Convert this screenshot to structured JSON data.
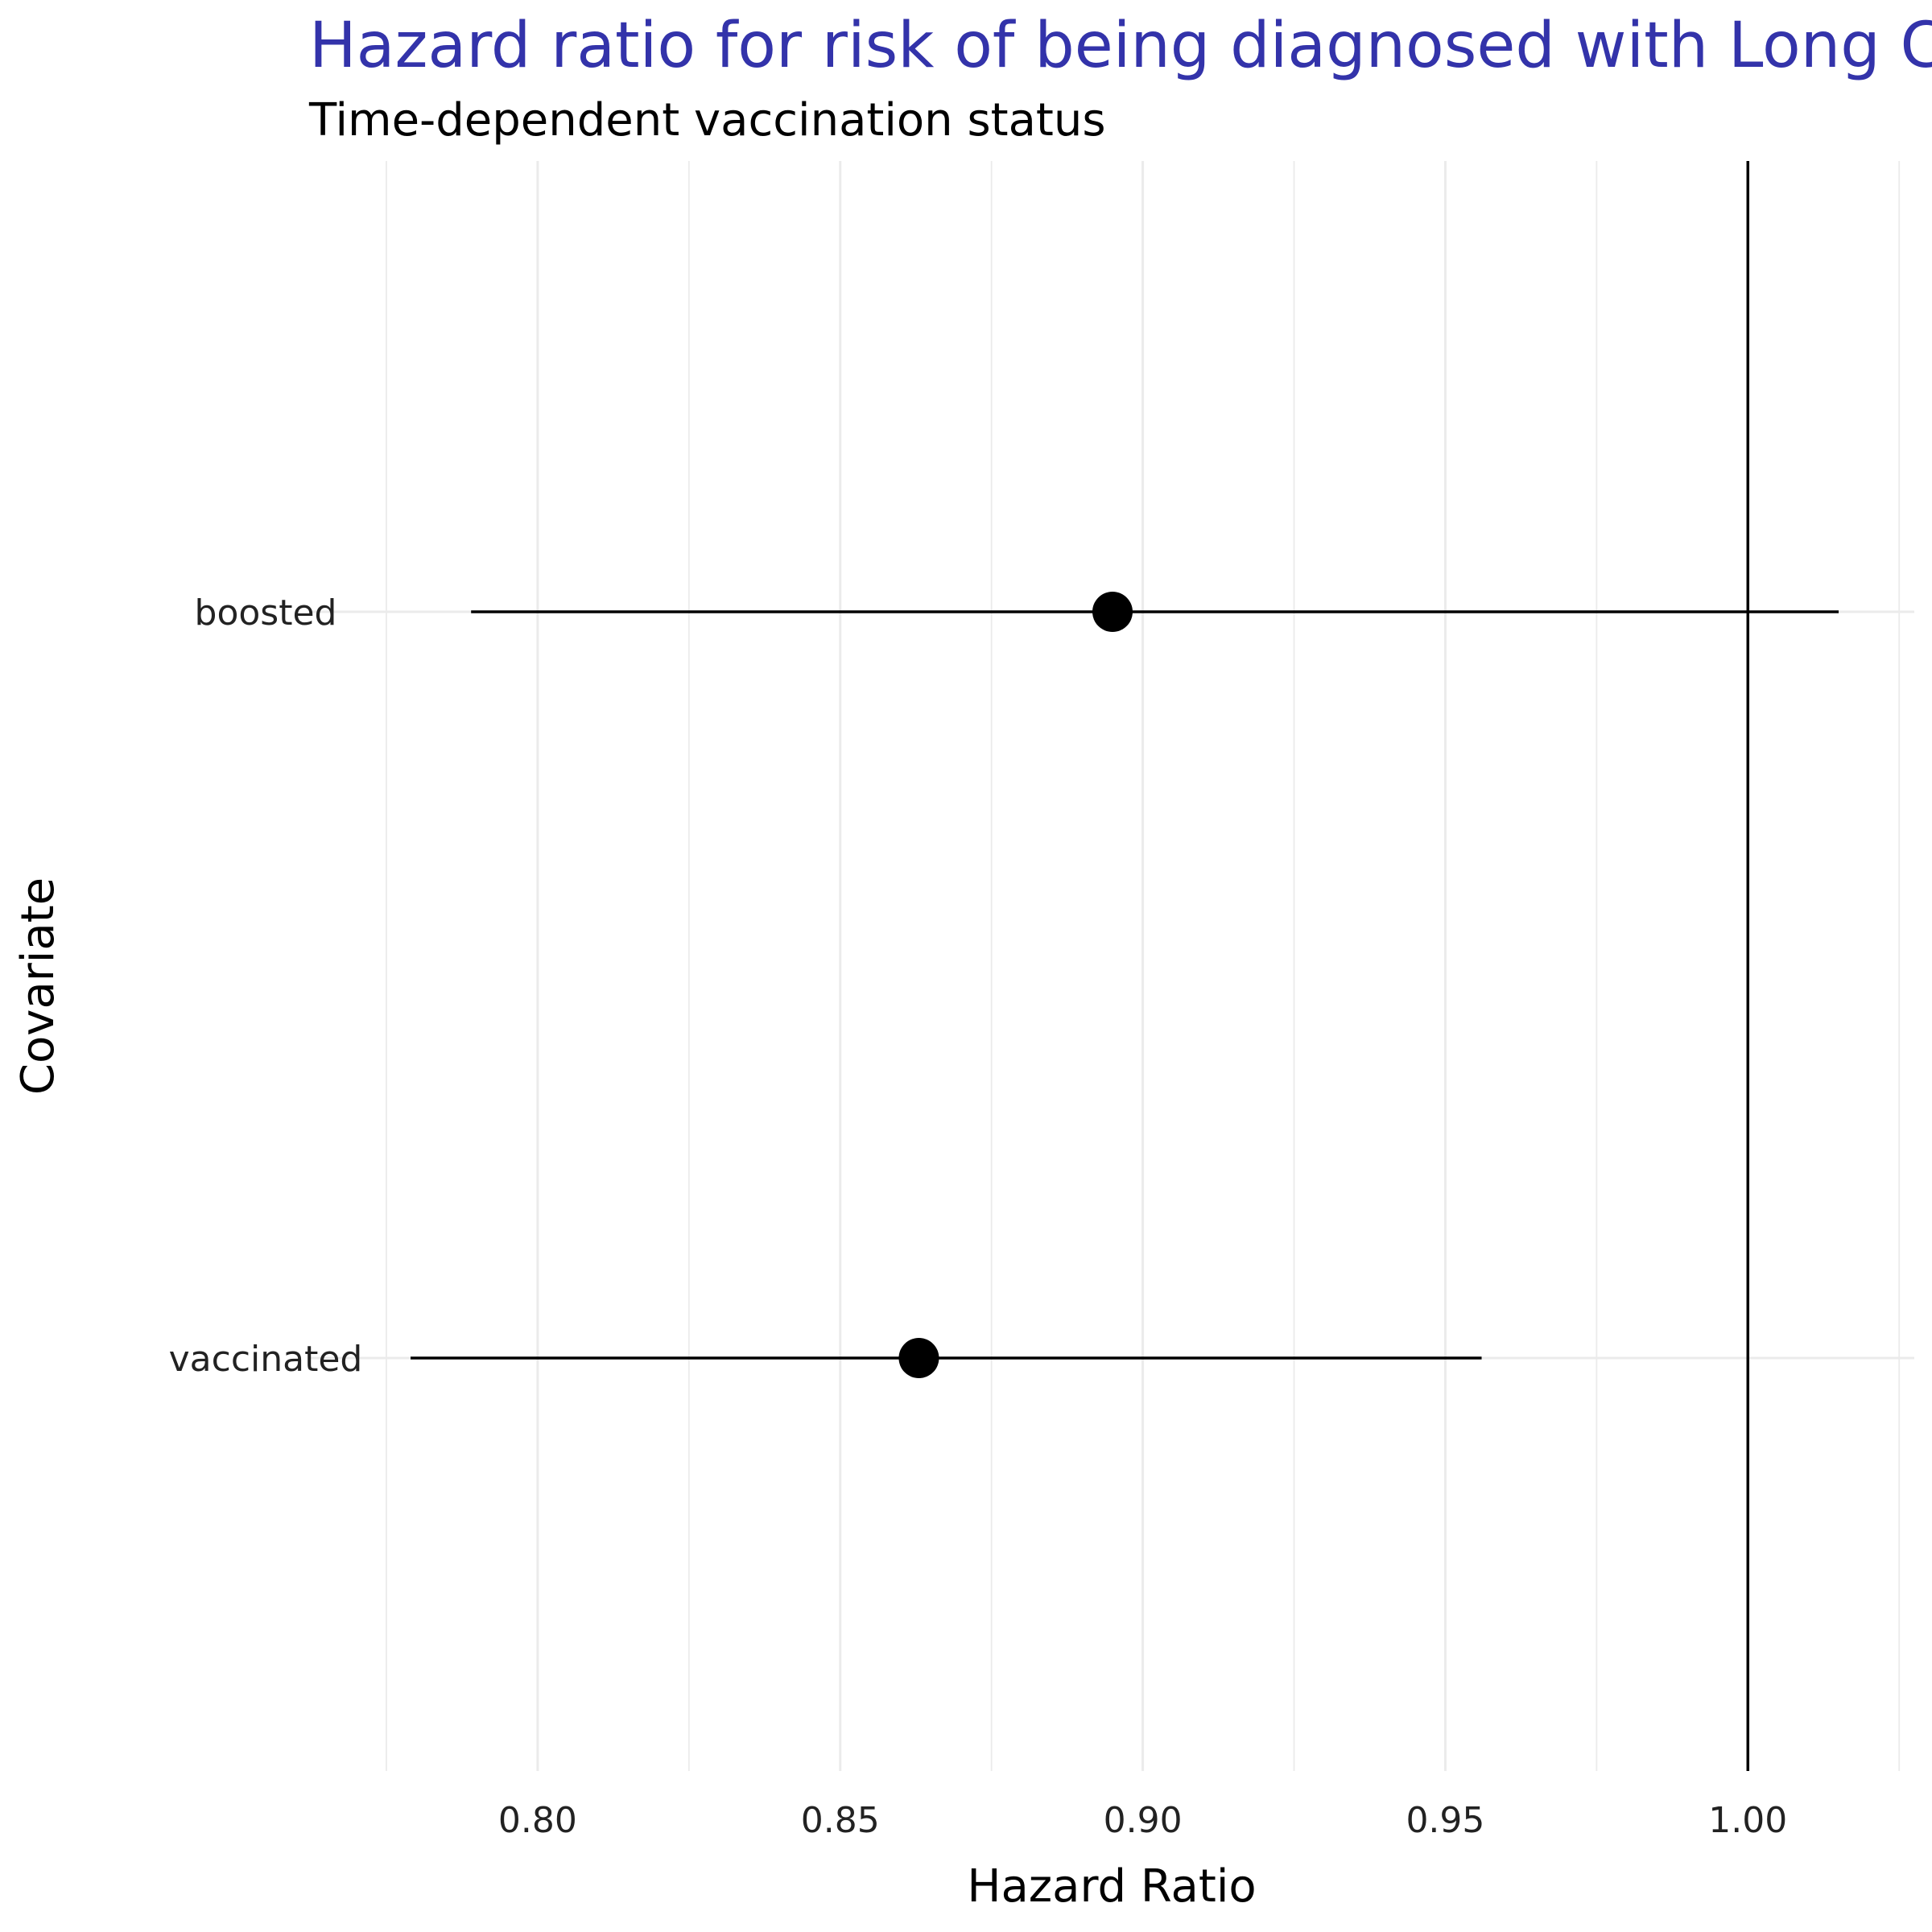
{
  "chart_data": {
    "type": "forest",
    "title": "Hazard ratio for risk of being diagnosed with Long COVID",
    "subtitle": "Time-dependent vaccination status",
    "xlabel": "Hazard Ratio",
    "ylabel": "Covariate",
    "xlim": [
      0.7625,
      1.0275
    ],
    "x_ticks": [
      0.8,
      0.85,
      0.9,
      0.95,
      1.0
    ],
    "x_tick_labels": [
      "0.80",
      "0.85",
      "0.90",
      "0.95",
      "1.00"
    ],
    "x_minor_ticks": [
      0.775,
      0.825,
      0.875,
      0.925,
      0.975,
      1.025
    ],
    "reference_line": 1.0,
    "grid": true,
    "categories": [
      "boosted",
      "vaccinated"
    ],
    "points": [
      {
        "label": "boosted",
        "estimate": 0.895,
        "lower": 0.789,
        "upper": 1.015
      },
      {
        "label": "vaccinated",
        "estimate": 0.863,
        "lower": 0.779,
        "upper": 0.956
      }
    ],
    "colors": {
      "title": "#3333aa",
      "marks": "#000000",
      "grid": "#ebebeb"
    }
  }
}
